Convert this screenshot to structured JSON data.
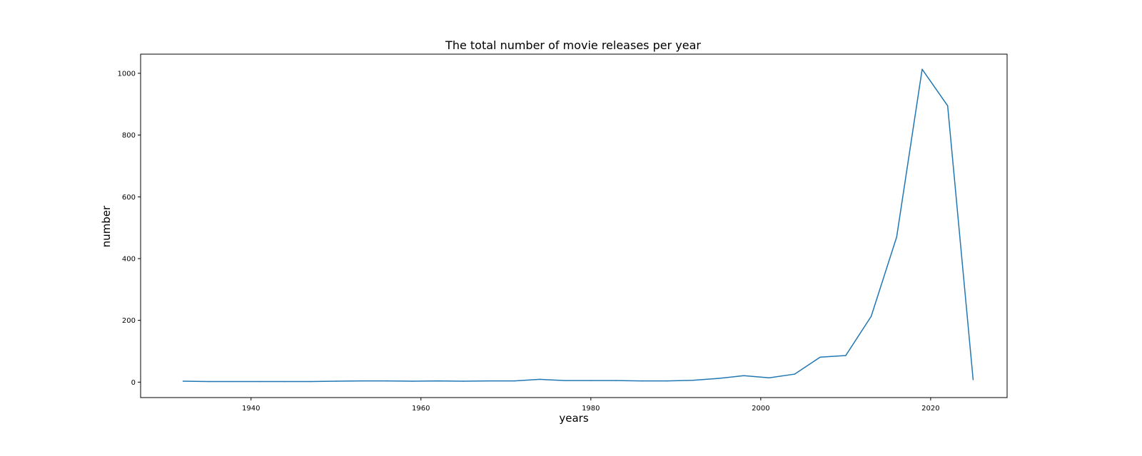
{
  "chart_data": {
    "type": "line",
    "title": "The total number of movie releases per year",
    "xlabel": "years",
    "ylabel": "number",
    "xlim": [
      1927,
      2029
    ],
    "ylim": [
      -50,
      1062
    ],
    "xticks": [
      1940,
      1960,
      1980,
      2000,
      2020
    ],
    "yticks": [
      0,
      200,
      400,
      600,
      800,
      1000
    ],
    "grid": false,
    "series": [
      {
        "color": "#1f77b4",
        "x": [
          1932,
          1935,
          1938,
          1941,
          1944,
          1947,
          1950,
          1953,
          1956,
          1959,
          1962,
          1965,
          1968,
          1971,
          1974,
          1977,
          1980,
          1983,
          1986,
          1989,
          1992,
          1995,
          1998,
          2001,
          2004,
          2007,
          2010,
          2013,
          2016,
          2019,
          2022,
          2025
        ],
        "values": [
          3,
          2,
          2,
          2,
          2,
          2,
          3,
          4,
          4,
          3,
          4,
          3,
          4,
          4,
          9,
          5,
          5,
          5,
          4,
          4,
          6,
          12,
          21,
          14,
          26,
          81,
          86,
          213,
          470,
          1013,
          895,
          8
        ]
      }
    ]
  }
}
